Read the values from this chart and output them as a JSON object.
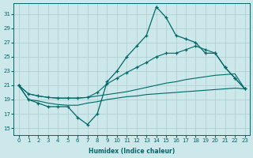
{
  "bg_color": "#cce8ea",
  "grid_color": "#aacccc",
  "line_color": "#006868",
  "xlabel": "Humidex (Indice chaleur)",
  "xlim": [
    -0.5,
    23.5
  ],
  "ylim": [
    14,
    32.5
  ],
  "xticks": [
    0,
    1,
    2,
    3,
    4,
    5,
    6,
    7,
    8,
    9,
    10,
    11,
    12,
    13,
    14,
    15,
    16,
    17,
    18,
    19,
    20,
    21,
    22,
    23
  ],
  "yticks": [
    15,
    17,
    19,
    21,
    23,
    25,
    27,
    29,
    31
  ],
  "jagged_x": [
    0,
    1,
    2,
    3,
    4,
    5,
    6,
    7,
    8,
    9,
    10,
    11,
    12,
    13,
    14,
    15,
    16,
    17,
    18,
    19,
    20,
    21,
    22,
    23
  ],
  "jagged_y": [
    21,
    19,
    18.5,
    18,
    18,
    18,
    16.5,
    15.5,
    17,
    21.5,
    23,
    25,
    26.5,
    28,
    32,
    30.5,
    28,
    27.5,
    27,
    25.5,
    25.5,
    23.5,
    22,
    20.5
  ],
  "upper_reg_x": [
    0,
    1,
    2,
    3,
    4,
    5,
    6,
    7,
    8,
    9,
    10,
    11,
    12,
    13,
    14,
    15,
    16,
    17,
    18,
    19,
    20,
    21,
    22,
    23
  ],
  "upper_reg_y": [
    21,
    19.8,
    19.5,
    19.3,
    19.2,
    19.2,
    19.2,
    19.3,
    20.0,
    21.2,
    22.0,
    22.8,
    23.5,
    24.2,
    25.0,
    25.5,
    25.5,
    26.0,
    26.5,
    26.0,
    25.5,
    23.5,
    22,
    20.5
  ],
  "lower_reg_x": [
    0,
    1,
    2,
    3,
    4,
    5,
    6,
    7,
    8,
    9,
    10,
    11,
    12,
    13,
    14,
    15,
    16,
    17,
    18,
    19,
    20,
    21,
    22,
    23
  ],
  "lower_reg_y": [
    21,
    19.8,
    19.5,
    19.3,
    19.2,
    19.2,
    19.2,
    19.3,
    19.5,
    19.7,
    19.9,
    20.1,
    20.4,
    20.7,
    21.0,
    21.3,
    21.5,
    21.8,
    22.0,
    22.2,
    22.4,
    22.5,
    22.6,
    20.5
  ],
  "flat_x": [
    0,
    1,
    2,
    3,
    4,
    5,
    6,
    7,
    8,
    9,
    10,
    11,
    12,
    13,
    14,
    15,
    16,
    17,
    18,
    19,
    20,
    21,
    22,
    23
  ],
  "flat_y": [
    21,
    19,
    18.8,
    18.5,
    18.3,
    18.2,
    18.2,
    18.5,
    18.7,
    19.0,
    19.2,
    19.4,
    19.5,
    19.7,
    19.8,
    19.9,
    20.0,
    20.1,
    20.2,
    20.3,
    20.4,
    20.5,
    20.6,
    20.5
  ]
}
